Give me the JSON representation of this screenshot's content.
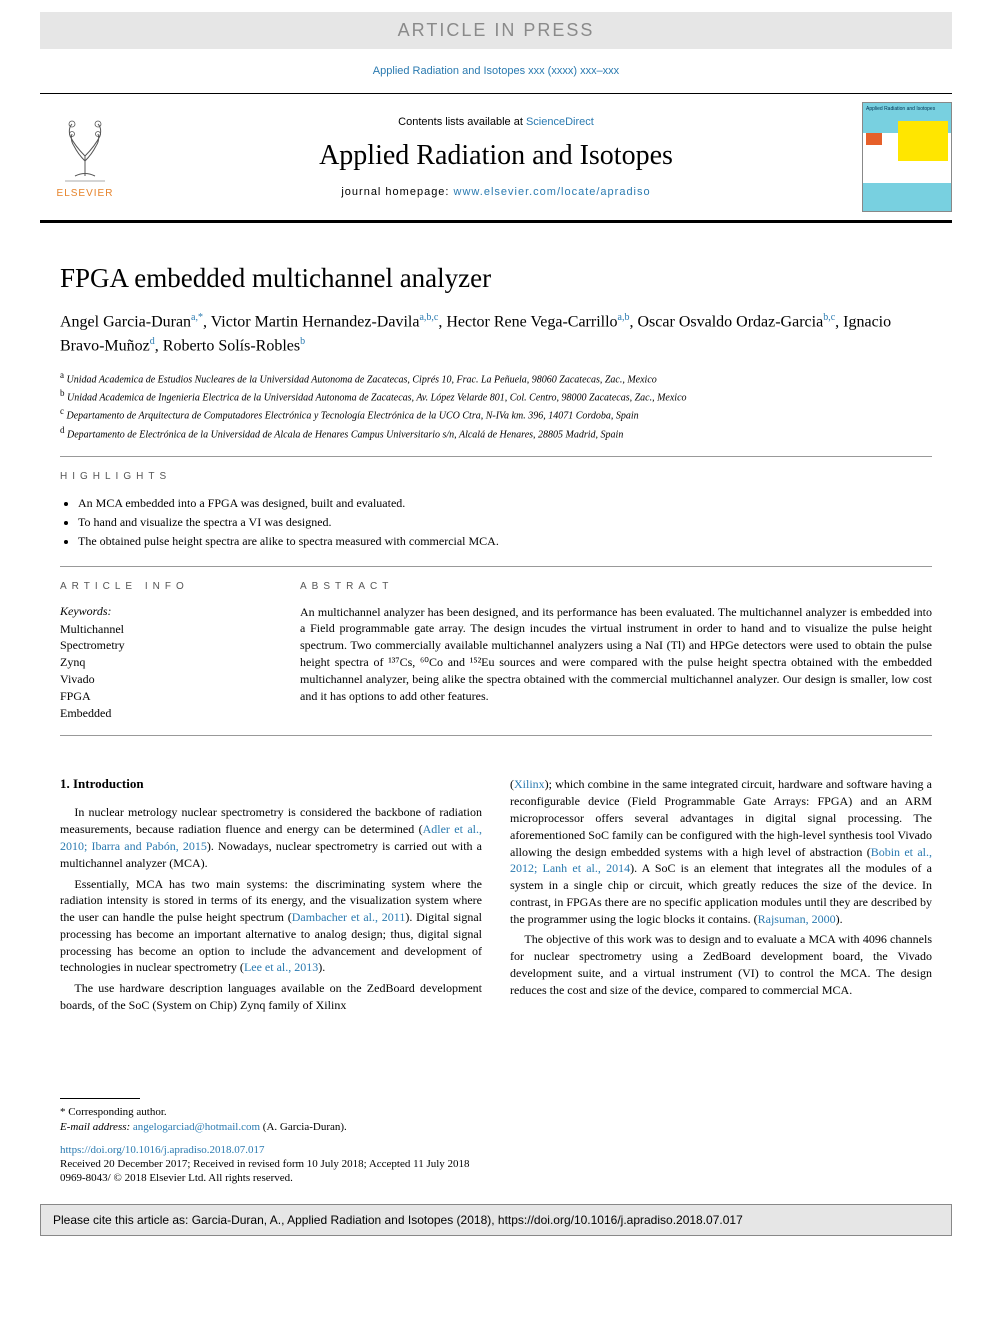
{
  "banner": "ARTICLE IN PRESS",
  "journal_ref": "Applied Radiation and Isotopes xxx (xxxx) xxx–xxx",
  "header": {
    "contents_prefix": "Contents lists available at ",
    "contents_link": "ScienceDirect",
    "journal_title": "Applied Radiation and Isotopes",
    "homepage_prefix": "journal homepage: ",
    "homepage_link": "www.elsevier.com/locate/apradiso",
    "elsevier_label": "ELSEVIER",
    "cover_title": "Applied Radiation and Isotopes"
  },
  "title": "FPGA embedded multichannel analyzer",
  "authors_html": "Angel Garcia-Duran<sup><a>a</a>,*</sup>, Victor Martin Hernandez-Davila<sup><a>a</a>,<a>b</a>,<a>c</a></sup>, Hector Rene Vega-Carrillo<sup><a>a</a>,<a>b</a></sup>, Oscar Osvaldo Ordaz-Garcia<sup><a>b</a>,<a>c</a></sup>, Ignacio Bravo-Muñoz<sup><a>d</a></sup>, Roberto Solís-Robles<sup><a>b</a></sup>",
  "affiliations": [
    "a Unidad Academica de Estudios Nucleares de la Universidad Autonoma de Zacatecas, Ciprés 10, Frac. La Peñuela, 98060 Zacatecas, Zac., Mexico",
    "b Unidad Academica de Ingenieria Electrica de la Universidad Autonoma de Zacatecas, Av. López Velarde 801, Col. Centro, 98000 Zacatecas, Zac., Mexico",
    "c Departamento de Arquitectura de Computadores Electrónica y Tecnología Electrónica de la UCO Ctra, N-IVa km. 396, 14071 Cordoba, Spain",
    "d Departamento de Electrónica de la Universidad de Alcala de Henares Campus Universitario s/n, Alcalá de Henares, 28805 Madrid, Spain"
  ],
  "highlights_label": "HIGHLIGHTS",
  "highlights": [
    "An MCA embedded into a FPGA was designed, built and evaluated.",
    "To hand and visualize the spectra a VI was designed.",
    "The obtained pulse height spectra are alike to spectra measured with commercial MCA."
  ],
  "article_info_label": "ARTICLE INFO",
  "keywords_label": "Keywords:",
  "keywords": [
    "Multichannel",
    "Spectrometry",
    "Zynq",
    "Vivado",
    "FPGA",
    "Embedded"
  ],
  "abstract_label": "ABSTRACT",
  "abstract": "An multichannel analyzer has been designed, and its performance has been evaluated. The multichannel analyzer is embedded into a Field programmable gate array. The design incudes the virtual instrument in order to hand and to visualize the pulse height spectrum. Two commercially available multichannel analyzers using a NaI (Tl) and HPGe detectors were used to obtain the pulse height spectra of ¹³⁷Cs, ⁶⁰Co and ¹⁵²Eu sources and were compared with the pulse height spectra obtained with the embedded multichannel analyzer, being alike the spectra obtained with the commercial multichannel analyzer. Our design is smaller, low cost and it has options to add other features.",
  "intro_heading": "1. Introduction",
  "col1": {
    "p1_pre": "In nuclear metrology nuclear spectrometry is considered the backbone of radiation measurements, because radiation fluence and energy can be determined (",
    "p1_link": "Adler et al., 2010; Ibarra and Pabón, 2015",
    "p1_post": "). Nowadays, nuclear spectrometry is carried out with a multichannel analyzer (MCA).",
    "p2_pre": "Essentially, MCA has two main systems: the discriminating system where the radiation intensity is stored in terms of its energy, and the visualization system where the user can handle the pulse height spectrum (",
    "p2_link1": "Dambacher et al., 2011",
    "p2_mid": "). Digital signal processing has become an important alternative to analog design; thus, digital signal processing has become an option to include the advancement and development of technologies in nuclear spectrometry (",
    "p2_link2": "Lee et al., 2013",
    "p2_post": ").",
    "p3": "The use hardware description languages available on the ZedBoard development boards, of the SoC (System on Chip) Zynq family of Xilinx"
  },
  "col2": {
    "p1_pre": "(",
    "p1_link1": "Xilinx",
    "p1_mid1": "); which combine in the same integrated circuit, hardware and software having a reconfigurable device (Field Programmable Gate Arrays: FPGA) and an ARM microprocessor offers several advantages in digital signal processing. The aforementioned SoC family can be configured with the high-level synthesis tool Vivado allowing the design embedded systems with a high level of abstraction (",
    "p1_link2": "Bobin et al., 2012; Lanh et al., 2014",
    "p1_mid2": "). A SoC is an element that integrates all the modules of a system in a single chip or circuit, which greatly reduces the size of the device. In contrast, in FPGAs there are no specific application modules until they are described by the programmer using the logic blocks it contains. (",
    "p1_link3": "Rajsuman, 2000",
    "p1_post": ").",
    "p2": "The objective of this work was to design and to evaluate a MCA with 4096 channels for nuclear spectrometry using a ZedBoard development board, the Vivado development suite, and a virtual instrument (VI) to control the MCA. The design reduces the cost and size of the device, compared to commercial MCA."
  },
  "footnotes": {
    "corresponding": "* Corresponding author.",
    "email_label": "E-mail address: ",
    "email": "angelogarciad@hotmail.com",
    "email_name": " (A. Garcia-Duran)."
  },
  "doi": "https://doi.org/10.1016/j.apradiso.2018.07.017",
  "received": "Received 20 December 2017; Received in revised form 10 July 2018; Accepted 11 July 2018",
  "copyright": "0969-8043/ © 2018 Elsevier Ltd. All rights reserved.",
  "cite_box": "Please cite this article as: Garcia-Duran, A., Applied Radiation and Isotopes (2018), https://doi.org/10.1016/j.apradiso.2018.07.017",
  "colors": {
    "link": "#2a7ab0",
    "banner_bg": "#e6e6e6",
    "banner_text": "#8a8a8a",
    "elsevier_orange": "#e6832a"
  }
}
